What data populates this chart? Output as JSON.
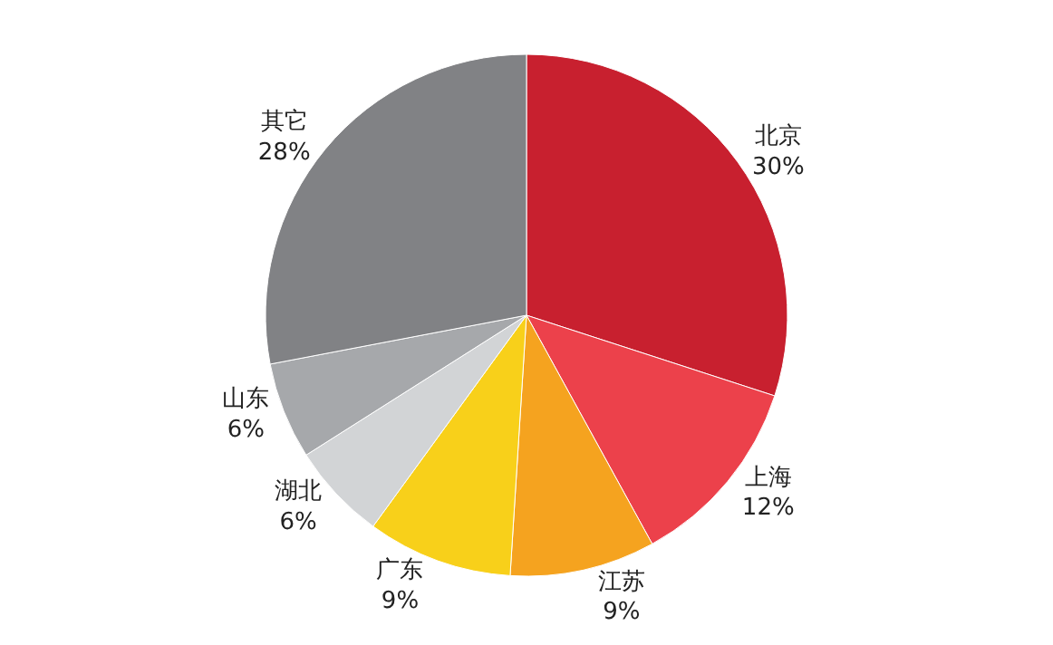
{
  "chart_data": {
    "type": "pie",
    "categories": [
      "北京",
      "上海",
      "江苏",
      "广东",
      "湖北",
      "山东",
      "其它"
    ],
    "values": [
      30,
      12,
      9,
      9,
      6,
      6,
      28
    ],
    "value_labels": [
      "30%",
      "12%",
      "9%",
      "9%",
      "6%",
      "6%",
      "28%"
    ],
    "colors": [
      "#c8202f",
      "#ec414b",
      "#f5a31f",
      "#f8d01a",
      "#d2d4d6",
      "#a6a8ab",
      "#818285"
    ],
    "legend": false
  }
}
